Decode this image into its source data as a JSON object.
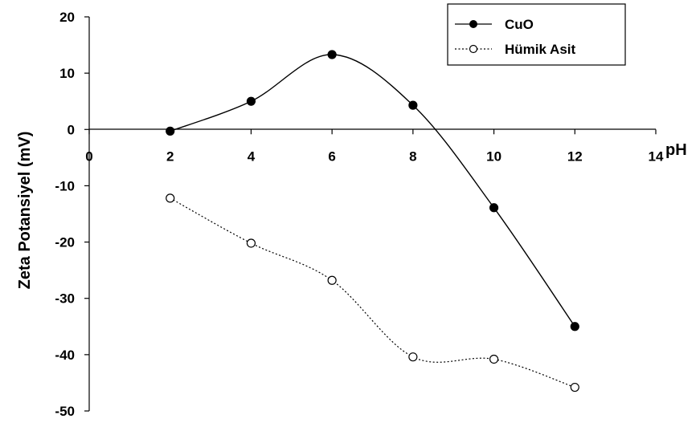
{
  "chart_data": {
    "type": "line",
    "xlabel": "pH",
    "ylabel": "Zeta Potansiyel (mV)",
    "xlim": [
      0,
      14
    ],
    "ylim": [
      -50,
      20
    ],
    "x_ticks": [
      "0",
      "2",
      "4",
      "6",
      "8",
      "10",
      "12",
      "14"
    ],
    "y_ticks": [
      "20",
      "10",
      "0",
      "-10",
      "-20",
      "-30",
      "-40",
      "-50"
    ],
    "grid": false,
    "legend_position": "top-right",
    "series": [
      {
        "name": "CuO",
        "marker": "filled-circle",
        "line_style": "solid",
        "smooth": true,
        "color": "#000000",
        "x": [
          2,
          4,
          6,
          8,
          10,
          12
        ],
        "y": [
          -0.3,
          5,
          13.3,
          4.3,
          -13.9,
          -35
        ]
      },
      {
        "name": "Hümik Asit",
        "marker": "open-circle",
        "line_style": "dotted",
        "smooth": true,
        "color": "#000000",
        "x": [
          2,
          4,
          6,
          8,
          10,
          12
        ],
        "y": [
          -12.2,
          -20.2,
          -26.8,
          -40.4,
          -40.8,
          -45.8
        ]
      }
    ]
  }
}
